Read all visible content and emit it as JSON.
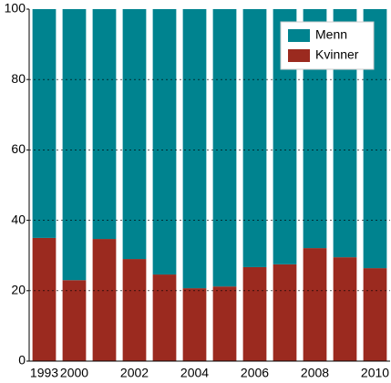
{
  "chart_data": {
    "type": "stacked_bar",
    "categories": [
      "1993",
      "2000",
      null,
      "2002",
      null,
      "2004",
      null,
      "2006",
      null,
      "2008",
      null,
      "2010"
    ],
    "series": [
      {
        "name": "Kvinner",
        "color": "#9b2a1f",
        "values": [
          35,
          23,
          34.7,
          29,
          24.6,
          20.7,
          21.2,
          26.7,
          27.5,
          32.1,
          29.5,
          26.4
        ]
      },
      {
        "name": "Menn",
        "color": "#00838f",
        "values": [
          65,
          77,
          65.3,
          71,
          75.4,
          79.3,
          78.8,
          73.3,
          72.5,
          67.9,
          70.5,
          73.6
        ]
      }
    ],
    "ylim": [
      0,
      100
    ],
    "yticks": [
      0,
      20,
      40,
      60,
      80,
      100
    ],
    "grid": true,
    "legend": "top-right"
  }
}
